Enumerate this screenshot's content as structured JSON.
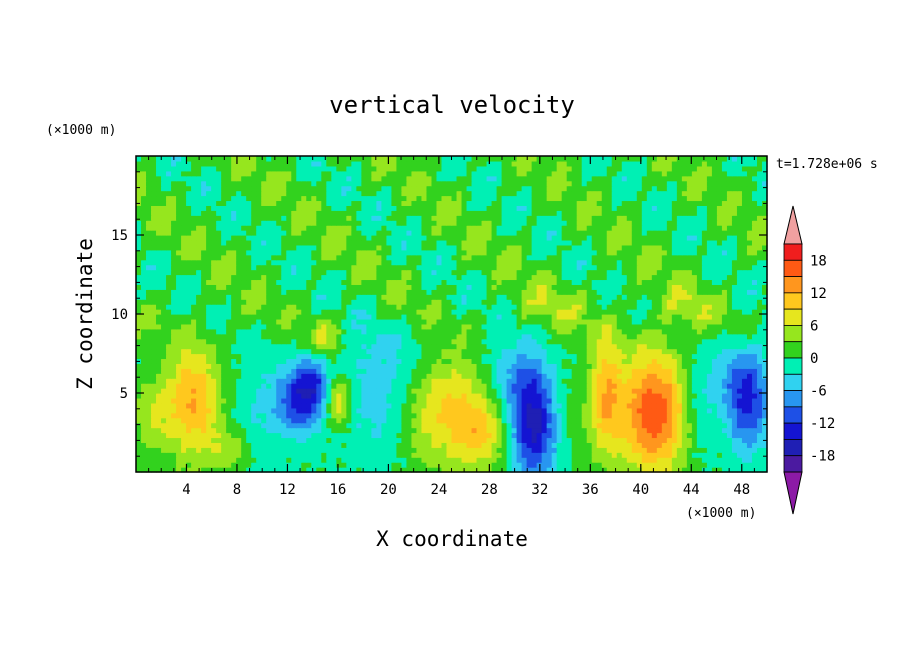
{
  "chart_data": {
    "type": "heatmap",
    "title": "vertical velocity",
    "xlabel": "X coordinate",
    "ylabel": "Z coordinate",
    "x_unit": "(×1000 m)",
    "y_unit": "(×1000 m)",
    "time_label": "t=1.728e+06 s",
    "xlim": [
      0,
      50
    ],
    "ylim": [
      0,
      20
    ],
    "x_ticks": [
      "4",
      "8",
      "12",
      "16",
      "20",
      "24",
      "28",
      "32",
      "36",
      "40",
      "44",
      "48"
    ],
    "y_ticks": [
      "5",
      "10",
      "15"
    ],
    "colorbar": {
      "tick_labels": [
        "18",
        "12",
        "6",
        "0",
        "-6",
        "-12",
        "-18"
      ],
      "levels": [
        -21,
        -18,
        -15,
        -12,
        -9,
        -6,
        -3,
        0,
        3,
        6,
        9,
        12,
        15,
        18,
        21
      ],
      "colors": [
        "#8c1aa6",
        "#4b1aa0",
        "#1f1fb4",
        "#1414d2",
        "#1e50e6",
        "#2896f0",
        "#30d2f0",
        "#00f0b4",
        "#32d21e",
        "#96e61e",
        "#e6e61e",
        "#ffc81e",
        "#ff961e",
        "#ff5a14",
        "#f01e1e",
        "#f0a0a0"
      ],
      "extend": "both"
    },
    "blobs": [
      {
        "x": 4.5,
        "z": 4.5,
        "sx": 1.6,
        "sz": 2.6,
        "amp": 12
      },
      {
        "x": 1.2,
        "z": 3.5,
        "sx": 1.0,
        "sz": 1.6,
        "amp": 5
      },
      {
        "x": 7.5,
        "z": 1.5,
        "sx": 1.2,
        "sz": 1.0,
        "amp": 5
      },
      {
        "x": 9.5,
        "z": 3.5,
        "sx": 1.6,
        "sz": 2.6,
        "amp": -3
      },
      {
        "x": 13.0,
        "z": 4.6,
        "sx": 1.3,
        "sz": 1.5,
        "amp": -13
      },
      {
        "x": 14.2,
        "z": 5.8,
        "sx": 0.9,
        "sz": 1.2,
        "amp": -7
      },
      {
        "x": 16.0,
        "z": 4.5,
        "sx": 0.7,
        "sz": 1.1,
        "amp": 10
      },
      {
        "x": 19.0,
        "z": 4.5,
        "sx": 2.0,
        "sz": 2.5,
        "amp": -4
      },
      {
        "x": 15.0,
        "z": 8.5,
        "sx": 1.0,
        "sz": 1.0,
        "amp": 6
      },
      {
        "x": 22.5,
        "z": 3.0,
        "sx": 1.2,
        "sz": 2.0,
        "amp": 3
      },
      {
        "x": 25.0,
        "z": 4.0,
        "sx": 1.8,
        "sz": 2.4,
        "amp": 9
      },
      {
        "x": 27.5,
        "z": 2.5,
        "sx": 1.4,
        "sz": 1.7,
        "amp": 8
      },
      {
        "x": 31.5,
        "z": 3.0,
        "sx": 1.3,
        "sz": 2.5,
        "amp": -16
      },
      {
        "x": 30.0,
        "z": 6.0,
        "sx": 1.5,
        "sz": 1.5,
        "amp": -5
      },
      {
        "x": 34.5,
        "z": 4.0,
        "sx": 1.2,
        "sz": 2.0,
        "amp": 2
      },
      {
        "x": 37.2,
        "z": 5.0,
        "sx": 0.9,
        "sz": 2.8,
        "amp": 10
      },
      {
        "x": 41.0,
        "z": 3.8,
        "sx": 2.0,
        "sz": 2.8,
        "amp": 17
      },
      {
        "x": 44.5,
        "z": 4.0,
        "sx": 1.0,
        "sz": 2.5,
        "amp": -4
      },
      {
        "x": 48.5,
        "z": 4.6,
        "sx": 1.2,
        "sz": 2.2,
        "amp": -13
      },
      {
        "x": 46.5,
        "z": 6.0,
        "sx": 1.5,
        "sz": 1.5,
        "amp": -3
      },
      {
        "x": 20.0,
        "z": 8.0,
        "sx": 3.0,
        "sz": 1.4,
        "amp": -2
      },
      {
        "x": 33.0,
        "z": 10.5,
        "sx": 2.0,
        "sz": 1.0,
        "amp": 3
      },
      {
        "x": 44.0,
        "z": 10.5,
        "sx": 1.5,
        "sz": 1.0,
        "amp": 3
      }
    ]
  }
}
